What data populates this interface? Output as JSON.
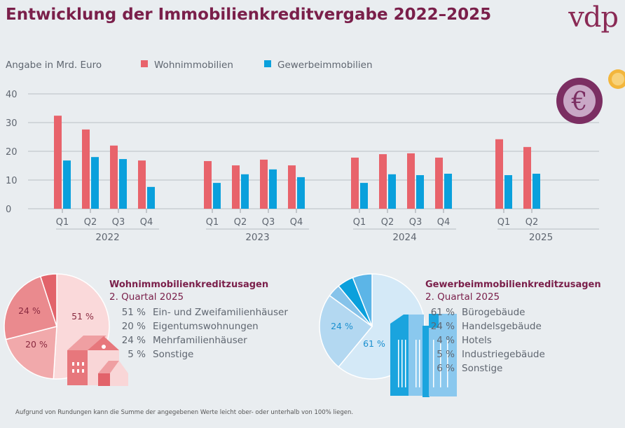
{
  "title": "Entwicklung der Immobilienkreditvergabe 2022–2025",
  "logo": "vdp",
  "chart_data": [
    {
      "type": "bar",
      "ylabel": "Angabe in Mrd. Euro",
      "ylim": [
        0,
        40
      ],
      "yticks": [
        "0",
        "10",
        "20",
        "30",
        "40"
      ],
      "grid": true,
      "legend_placement": "top",
      "groups": [
        {
          "year": "2022",
          "quarters": [
            "Q1",
            "Q2",
            "Q3",
            "Q4"
          ]
        },
        {
          "year": "2023",
          "quarters": [
            "Q1",
            "Q2",
            "Q3",
            "Q4"
          ]
        },
        {
          "year": "2024",
          "quarters": [
            "Q1",
            "Q2",
            "Q3",
            "Q4"
          ]
        },
        {
          "year": "2025",
          "quarters": [
            "Q1",
            "Q2"
          ]
        }
      ],
      "series": [
        {
          "name": "Wohnimmobilien",
          "color": "#e8636b",
          "values": [
            32.4,
            27.6,
            22.0,
            16.8,
            16.6,
            15.1,
            17.1,
            15.1,
            17.8,
            19.0,
            19.3,
            17.8,
            24.2,
            21.5
          ]
        },
        {
          "name": "Gewerbeimmobilien",
          "color": "#0aa0dc",
          "values": [
            16.8,
            18.0,
            17.3,
            7.6,
            9.0,
            12.0,
            13.7,
            11.0,
            9.0,
            12.0,
            11.7,
            12.2,
            11.7,
            12.2
          ]
        }
      ]
    },
    {
      "type": "pie",
      "title": "Wohnimmobilienkreditzusagen",
      "subtitle": "2. Quartal 2025",
      "slices": [
        {
          "value": 51,
          "label": "51 %",
          "category": "Ein- und Zweifamilienhäuser",
          "color": "#fad9da",
          "show_label": true
        },
        {
          "value": 20,
          "label": "20 %",
          "category": "Eigentumswohnungen",
          "color": "#f1a9ab",
          "show_label": true
        },
        {
          "value": 24,
          "label": "24 %",
          "category": "Mehrfamilienhäuser",
          "color": "#ea8a8e",
          "show_label": true
        },
        {
          "value": 5,
          "label": "5 %",
          "category": "Sonstige",
          "color": "#e2636a",
          "show_label": false
        }
      ]
    },
    {
      "type": "pie",
      "title": "Gewerbeimmobilienkreditzusagen",
      "subtitle": "2. Quartal 2025",
      "slices": [
        {
          "value": 61,
          "label": "61 %",
          "category": "Bürogebäude",
          "color": "#d4e9f7",
          "show_label": true
        },
        {
          "value": 24,
          "label": "24 %",
          "category": "Handelsgebäude",
          "color": "#b3d8f1",
          "show_label": true
        },
        {
          "value": 4,
          "label": "4 %",
          "category": "Hotels",
          "color": "#86c3ea",
          "show_label": false
        },
        {
          "value": 5,
          "label": "5 %",
          "category": "Industriegebäude",
          "color": "#0aa0dc",
          "show_label": false
        },
        {
          "value": 6,
          "label": "6 %",
          "category": "Sonstige",
          "color": "#5cb5e7",
          "show_label": false
        }
      ]
    }
  ],
  "footnote": "Aufgrund von Rundungen kann die Summe der angegebenen Werte leicht ober- oder unterhalb von 100% liegen.",
  "icons": {
    "coin": "euro-coin-icon",
    "house": "house-icon",
    "building": "office-building-icon"
  }
}
